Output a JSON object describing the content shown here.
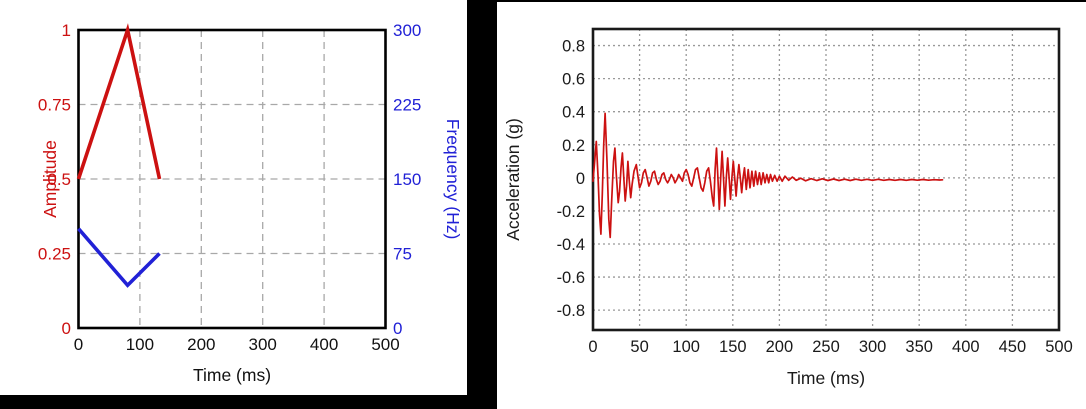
{
  "colors": {
    "amplitude_red": "#cc1111",
    "frequency_blue": "#2121d6",
    "signal_red": "#cc1111",
    "axis_black": "#1a1a1a",
    "grid_gray_left": "#a8a8a8",
    "grid_gray_right": "#999999",
    "frame_black": "#000000"
  },
  "panels": {
    "left": {
      "name": "sweep-specification-chart"
    },
    "right": {
      "name": "acceleration-time-history-chart"
    }
  },
  "chart_data": [
    {
      "type": "line",
      "title": "",
      "xlabel": "Time (ms)",
      "xlim": [
        0,
        500
      ],
      "x_ticks": [
        0,
        100,
        200,
        300,
        400,
        500
      ],
      "grid": "dashed",
      "legend": "none",
      "axes": {
        "left": {
          "label": "Amplitude",
          "color": "#cc1111",
          "range": [
            0,
            1
          ],
          "ticks": [
            0,
            0.25,
            0.5,
            0.75,
            1
          ]
        },
        "right": {
          "label": "Frequency (Hz)",
          "color": "#2121d6",
          "range": [
            0,
            300
          ],
          "ticks": [
            0,
            75,
            150,
            225,
            300
          ]
        }
      },
      "series": [
        {
          "name": "Amplitude",
          "axis": "left",
          "color": "#cc1111",
          "points": [
            [
              0,
              0.5
            ],
            [
              80,
              1.0
            ],
            [
              132,
              0.5
            ]
          ]
        },
        {
          "name": "Frequency",
          "axis": "right",
          "color": "#2121d6",
          "points": [
            [
              0,
              100
            ],
            [
              80,
              43
            ],
            [
              132,
              75
            ]
          ]
        }
      ]
    },
    {
      "type": "line",
      "title": "",
      "xlabel": "Time (ms)",
      "ylabel": "Acceleration (g)",
      "xlim": [
        0,
        500
      ],
      "ylim": [
        -0.92,
        0.9
      ],
      "x_ticks": [
        0,
        50,
        100,
        150,
        200,
        250,
        300,
        350,
        400,
        450,
        500
      ],
      "y_ticks": [
        0.8,
        0.6,
        0.4,
        0.2,
        0,
        -0.2,
        -0.4,
        -0.6,
        -0.8
      ],
      "grid": "dotted",
      "legend": "none",
      "series": [
        {
          "name": "Acceleration",
          "color": "#cc1111",
          "points": [
            [
              0,
              -0.02
            ],
            [
              1.5,
              0.08
            ],
            [
              3.5,
              0.22
            ],
            [
              5.5,
              0
            ],
            [
              7,
              -0.22
            ],
            [
              8.5,
              -0.34
            ],
            [
              10,
              -0.1
            ],
            [
              11.5,
              0.2
            ],
            [
              13,
              0.39
            ],
            [
              15,
              0.1
            ],
            [
              17,
              -0.25
            ],
            [
              18.5,
              -0.36
            ],
            [
              20,
              -0.15
            ],
            [
              22,
              0.1
            ],
            [
              23.5,
              0.18
            ],
            [
              25,
              0.02
            ],
            [
              27,
              -0.15
            ],
            [
              28.5,
              -0.08
            ],
            [
              30,
              0.06
            ],
            [
              31.5,
              0.15
            ],
            [
              33,
              0
            ],
            [
              34.5,
              -0.14
            ],
            [
              36,
              -0.05
            ],
            [
              37.5,
              0.1
            ],
            [
              39,
              -0.02
            ],
            [
              40.5,
              -0.12
            ],
            [
              42,
              -0.04
            ],
            [
              44,
              0.04
            ],
            [
              46.5,
              0.08
            ],
            [
              48,
              0.02
            ],
            [
              50,
              -0.06
            ],
            [
              52,
              -0.03
            ],
            [
              54,
              0.03
            ],
            [
              56,
              0.05
            ],
            [
              58,
              0
            ],
            [
              60,
              -0.05
            ],
            [
              62,
              -0.02
            ],
            [
              64,
              0.03
            ],
            [
              66,
              0.04
            ],
            [
              68,
              -0.01
            ],
            [
              70,
              -0.04
            ],
            [
              72,
              -0.02
            ],
            [
              74,
              0.02
            ],
            [
              76,
              0.03
            ],
            [
              78,
              -0.01
            ],
            [
              80,
              -0.03
            ],
            [
              82,
              -0.01
            ],
            [
              84,
              0.02
            ],
            [
              86,
              0
            ],
            [
              88,
              -0.03
            ],
            [
              90,
              -0.01
            ],
            [
              92,
              0.02
            ],
            [
              94,
              0
            ],
            [
              96,
              -0.02
            ],
            [
              98,
              0.03
            ],
            [
              100,
              0.05
            ],
            [
              102,
              0.02
            ],
            [
              104,
              -0.03
            ],
            [
              106,
              -0.05
            ],
            [
              108,
              0
            ],
            [
              110,
              0.05
            ],
            [
              112,
              0.06
            ],
            [
              114,
              0
            ],
            [
              116,
              -0.06
            ],
            [
              118,
              -0.08
            ],
            [
              120,
              -0.03
            ],
            [
              122,
              0.04
            ],
            [
              124,
              0.06
            ],
            [
              126,
              -0.02
            ],
            [
              128,
              -0.12
            ],
            [
              129.5,
              -0.17
            ],
            [
              131,
              0.05
            ],
            [
              132.5,
              0.18
            ],
            [
              134,
              0
            ],
            [
              135.5,
              -0.19
            ],
            [
              137,
              0
            ],
            [
              138.5,
              0.16
            ],
            [
              140,
              0
            ],
            [
              141.5,
              -0.17
            ],
            [
              143,
              0
            ],
            [
              144.5,
              0.12
            ],
            [
              146,
              0
            ],
            [
              147.5,
              -0.13
            ],
            [
              149,
              0
            ],
            [
              150.5,
              0.1
            ],
            [
              152,
              0
            ],
            [
              153.5,
              -0.11
            ],
            [
              155,
              0
            ],
            [
              156.5,
              0.08
            ],
            [
              158,
              0
            ],
            [
              159.5,
              -0.09
            ],
            [
              161,
              0
            ],
            [
              162.5,
              0.06
            ],
            [
              164.5,
              -0.07
            ],
            [
              166.5,
              0.05
            ],
            [
              168.5,
              -0.06
            ],
            [
              170.5,
              0.04
            ],
            [
              172.5,
              -0.05
            ],
            [
              174.5,
              0.04
            ],
            [
              176.5,
              -0.04
            ],
            [
              178.5,
              0.03
            ],
            [
              180.5,
              -0.04
            ],
            [
              182.5,
              0.03
            ],
            [
              184.5,
              -0.03
            ],
            [
              186.5,
              0.02
            ],
            [
              188.5,
              -0.03
            ],
            [
              190.5,
              0.02
            ],
            [
              192.5,
              -0.02
            ],
            [
              195,
              0.015
            ],
            [
              197.5,
              -0.02
            ],
            [
              200,
              0.01
            ],
            [
              203,
              -0.02
            ],
            [
              206,
              0.01
            ],
            [
              210,
              -0.015
            ],
            [
              214,
              0.005
            ],
            [
              218,
              -0.015
            ],
            [
              223,
              -0.002
            ],
            [
              228,
              -0.018
            ],
            [
              234,
              -0.005
            ],
            [
              240,
              -0.016
            ],
            [
              246,
              -0.006
            ],
            [
              252,
              -0.016
            ],
            [
              258,
              -0.007
            ],
            [
              264,
              -0.016
            ],
            [
              270,
              -0.008
            ],
            [
              276,
              -0.016
            ],
            [
              282,
              -0.008
            ],
            [
              288,
              -0.015
            ],
            [
              294,
              -0.009
            ],
            [
              300,
              -0.015
            ],
            [
              306,
              -0.009
            ],
            [
              312,
              -0.015
            ],
            [
              318,
              -0.01
            ],
            [
              324,
              -0.015
            ],
            [
              330,
              -0.01
            ],
            [
              336,
              -0.015
            ],
            [
              342,
              -0.01
            ],
            [
              348,
              -0.014
            ],
            [
              354,
              -0.01
            ],
            [
              360,
              -0.014
            ],
            [
              366,
              -0.011
            ],
            [
              372,
              -0.013
            ],
            [
              375,
              -0.012
            ]
          ]
        }
      ]
    }
  ]
}
